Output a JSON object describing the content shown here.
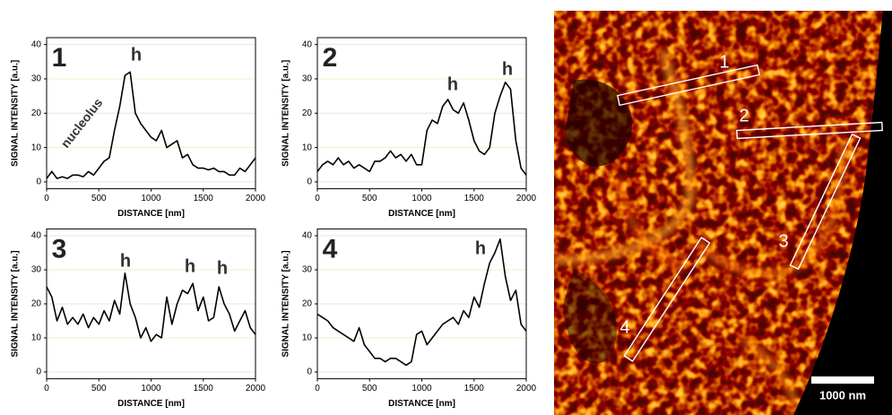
{
  "chart_data": [
    {
      "type": "line",
      "panel_label": "1",
      "annotations": [
        "h",
        "nucleolus"
      ],
      "xlabel": "DISTANCE [nm]",
      "ylabel": "SIGNAL INTENSITY [a.u.]",
      "x": [
        0,
        50,
        100,
        150,
        200,
        250,
        300,
        350,
        400,
        450,
        500,
        550,
        600,
        650,
        700,
        750,
        800,
        850,
        900,
        950,
        1000,
        1050,
        1100,
        1150,
        1200,
        1250,
        1300,
        1350,
        1400,
        1450,
        1500,
        1550,
        1600,
        1650,
        1700,
        1750,
        1800,
        1850,
        1900,
        1950,
        2000
      ],
      "series": [
        {
          "color": "#000000",
          "values": [
            1,
            3,
            1,
            1.5,
            1,
            2,
            2,
            1.5,
            3,
            2,
            4,
            6,
            7,
            15,
            22,
            31,
            32,
            20,
            17,
            15,
            13,
            12,
            15,
            10,
            11,
            12,
            7,
            8,
            5,
            4,
            4,
            3.5,
            4,
            3,
            3,
            2,
            2,
            4,
            3,
            5,
            7
          ]
        }
      ],
      "xlim": [
        0,
        2000
      ],
      "ylim": [
        -2,
        42
      ],
      "xticks": [
        0,
        500,
        1000,
        1500,
        2000
      ],
      "yticks": [
        0,
        10,
        20,
        30,
        40
      ],
      "grid": true
    },
    {
      "type": "line",
      "panel_label": "2",
      "annotations": [
        "h",
        "h"
      ],
      "xlabel": "DISTANCE [nm]",
      "ylabel": "SIGNAL INTENSITY [a.u.]",
      "x": [
        0,
        50,
        100,
        150,
        200,
        250,
        300,
        350,
        400,
        450,
        500,
        550,
        600,
        650,
        700,
        750,
        800,
        850,
        900,
        950,
        1000,
        1050,
        1100,
        1150,
        1200,
        1250,
        1300,
        1350,
        1400,
        1450,
        1500,
        1550,
        1600,
        1650,
        1700,
        1750,
        1800,
        1850,
        1900,
        1950,
        2000
      ],
      "series": [
        {
          "color": "#000000",
          "values": [
            3,
            5,
            6,
            5,
            7,
            5,
            6,
            4,
            5,
            4,
            3,
            6,
            6,
            7,
            9,
            7,
            8,
            6,
            8,
            5,
            5,
            15,
            18,
            17,
            22,
            24,
            21,
            20,
            23,
            18,
            12,
            9,
            8,
            10,
            20,
            25,
            29,
            27,
            12,
            4,
            2
          ]
        }
      ],
      "xlim": [
        0,
        2000
      ],
      "ylim": [
        -2,
        42
      ],
      "xticks": [
        0,
        500,
        1000,
        1500,
        2000
      ],
      "yticks": [
        0,
        10,
        20,
        30,
        40
      ],
      "grid": true
    },
    {
      "type": "line",
      "panel_label": "3",
      "annotations": [
        "h",
        "h",
        "h"
      ],
      "xlabel": "DISTANCE [nm]",
      "ylabel": "SIGNAL INTENSITY [a.u.]",
      "x": [
        0,
        50,
        100,
        150,
        200,
        250,
        300,
        350,
        400,
        450,
        500,
        550,
        600,
        650,
        700,
        750,
        800,
        850,
        900,
        950,
        1000,
        1050,
        1100,
        1150,
        1200,
        1250,
        1300,
        1350,
        1400,
        1450,
        1500,
        1550,
        1600,
        1650,
        1700,
        1750,
        1800,
        1850,
        1900,
        1950,
        2000
      ],
      "series": [
        {
          "color": "#000000",
          "values": [
            25,
            22,
            15,
            19,
            14,
            16,
            14,
            17,
            13,
            16,
            14,
            18,
            15,
            21,
            17,
            29,
            20,
            16,
            10,
            13,
            9,
            11,
            10,
            22,
            14,
            20,
            24,
            23,
            26,
            18,
            22,
            15,
            16,
            25,
            20,
            17,
            12,
            15,
            18,
            13,
            11
          ]
        }
      ],
      "xlim": [
        0,
        2000
      ],
      "ylim": [
        -2,
        42
      ],
      "xticks": [
        0,
        500,
        1000,
        1500,
        2000
      ],
      "yticks": [
        0,
        10,
        20,
        30,
        40
      ],
      "grid": true
    },
    {
      "type": "line",
      "panel_label": "4",
      "annotations": [
        "h"
      ],
      "xlabel": "DISTANCE [nm]",
      "ylabel": "SIGNAL INTENSITY [a.u.]",
      "x": [
        0,
        50,
        100,
        150,
        200,
        250,
        300,
        350,
        400,
        450,
        500,
        550,
        600,
        650,
        700,
        750,
        800,
        850,
        900,
        950,
        1000,
        1050,
        1100,
        1150,
        1200,
        1250,
        1300,
        1350,
        1400,
        1450,
        1500,
        1550,
        1600,
        1650,
        1700,
        1750,
        1800,
        1850,
        1900,
        1950,
        2000
      ],
      "series": [
        {
          "color": "#000000",
          "values": [
            17,
            16,
            15,
            13,
            12,
            11,
            10,
            9,
            13,
            8,
            6,
            4,
            4,
            3,
            4,
            4,
            3,
            2,
            3,
            11,
            12,
            8,
            10,
            12,
            14,
            15,
            16,
            14,
            18,
            16,
            22,
            19,
            26,
            32,
            35,
            39,
            28,
            21,
            24,
            14,
            12
          ]
        }
      ],
      "xlim": [
        0,
        2000
      ],
      "ylim": [
        -2,
        42
      ],
      "xticks": [
        0,
        500,
        1000,
        1500,
        2000
      ],
      "yticks": [
        0,
        10,
        20,
        30,
        40
      ],
      "grid": true
    }
  ],
  "image": {
    "rois": [
      "1",
      "2",
      "3",
      "4"
    ],
    "scale_bar": "1000 nm"
  }
}
